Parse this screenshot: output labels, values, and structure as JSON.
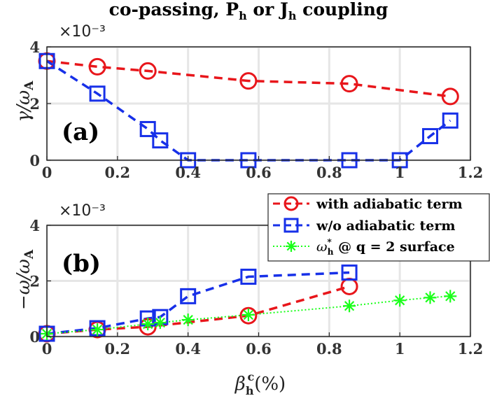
{
  "title_prefix": "co-passing, P",
  "title_sub_h": "h",
  "title_mid": " or J",
  "title_suffix": " coupling",
  "y_exponent": "×10⁻³",
  "colors": {
    "red": "#e8161b",
    "blue": "#1730e8",
    "green": "#1aff1a",
    "grid": "#e6e6e6"
  },
  "chart_data": [
    {
      "type": "line",
      "panel_label": "(a)",
      "ylabel_html": "γ/ω",
      "ylabel_sub": "A",
      "xlim": [
        0,
        1.2
      ],
      "ylim": [
        0,
        4
      ],
      "xticks": [
        "0",
        "0.2",
        "0.4",
        "0.6",
        "0.8",
        "1",
        "1.2"
      ],
      "yticks": [
        "0",
        "2",
        "4"
      ],
      "grid": true,
      "series": [
        {
          "name": "with adiabatic term",
          "color": "#e8161b",
          "marker": "circle",
          "x": [
            0,
            0.143,
            0.286,
            0.571,
            0.857,
            1.143
          ],
          "y": [
            3.5,
            3.3,
            3.15,
            2.8,
            2.7,
            2.25
          ]
        },
        {
          "name": "w/o adiabatic term",
          "color": "#1730e8",
          "marker": "square",
          "x": [
            0,
            0.143,
            0.286,
            0.321,
            0.4,
            0.571,
            0.857,
            1.0,
            1.086,
            1.143
          ],
          "y": [
            3.5,
            2.35,
            1.1,
            0.7,
            0,
            0,
            0,
            0,
            0.85,
            1.4
          ]
        }
      ]
    },
    {
      "type": "line",
      "panel_label": "(b)",
      "ylabel_html": "−ω/ω",
      "ylabel_sub": "A",
      "xlabel_main": "β",
      "xlabel_sub": "h",
      "xlabel_sup": "c",
      "xlabel_tail": "(%)",
      "xlim": [
        0,
        1.2
      ],
      "ylim": [
        0,
        4
      ],
      "xticks": [
        "0",
        "0.2",
        "0.4",
        "0.6",
        "0.8",
        "1",
        "1.2"
      ],
      "yticks": [
        "0",
        "2",
        "4"
      ],
      "grid": true,
      "legend_position": "top-right",
      "series": [
        {
          "name": "with adiabatic term",
          "color": "#e8161b",
          "marker": "circle",
          "x": [
            0,
            0.143,
            0.286,
            0.571,
            0.857
          ],
          "y": [
            0.1,
            0.25,
            0.35,
            0.75,
            1.8
          ]
        },
        {
          "name": "w/o adiabatic term",
          "color": "#1730e8",
          "marker": "square",
          "x": [
            0,
            0.143,
            0.286,
            0.321,
            0.4,
            0.571,
            0.857
          ],
          "y": [
            0.1,
            0.3,
            0.65,
            0.7,
            1.45,
            2.15,
            2.3
          ]
        },
        {
          "name": "ω*h @ q = 2 surface",
          "color": "#1aff1a",
          "marker": "star",
          "x": [
            0,
            0.143,
            0.286,
            0.321,
            0.4,
            0.571,
            0.857,
            1.0,
            1.086,
            1.143
          ],
          "y": [
            0.1,
            0.25,
            0.45,
            0.5,
            0.6,
            0.78,
            1.1,
            1.3,
            1.4,
            1.45
          ]
        }
      ]
    }
  ],
  "legend": {
    "with": "with adiabatic term",
    "without": "w/o adiabatic term",
    "omega_prefix": "ω",
    "omega_sup": "*",
    "omega_sub": "h",
    "omega_suffix": " @ q = 2 surface"
  }
}
